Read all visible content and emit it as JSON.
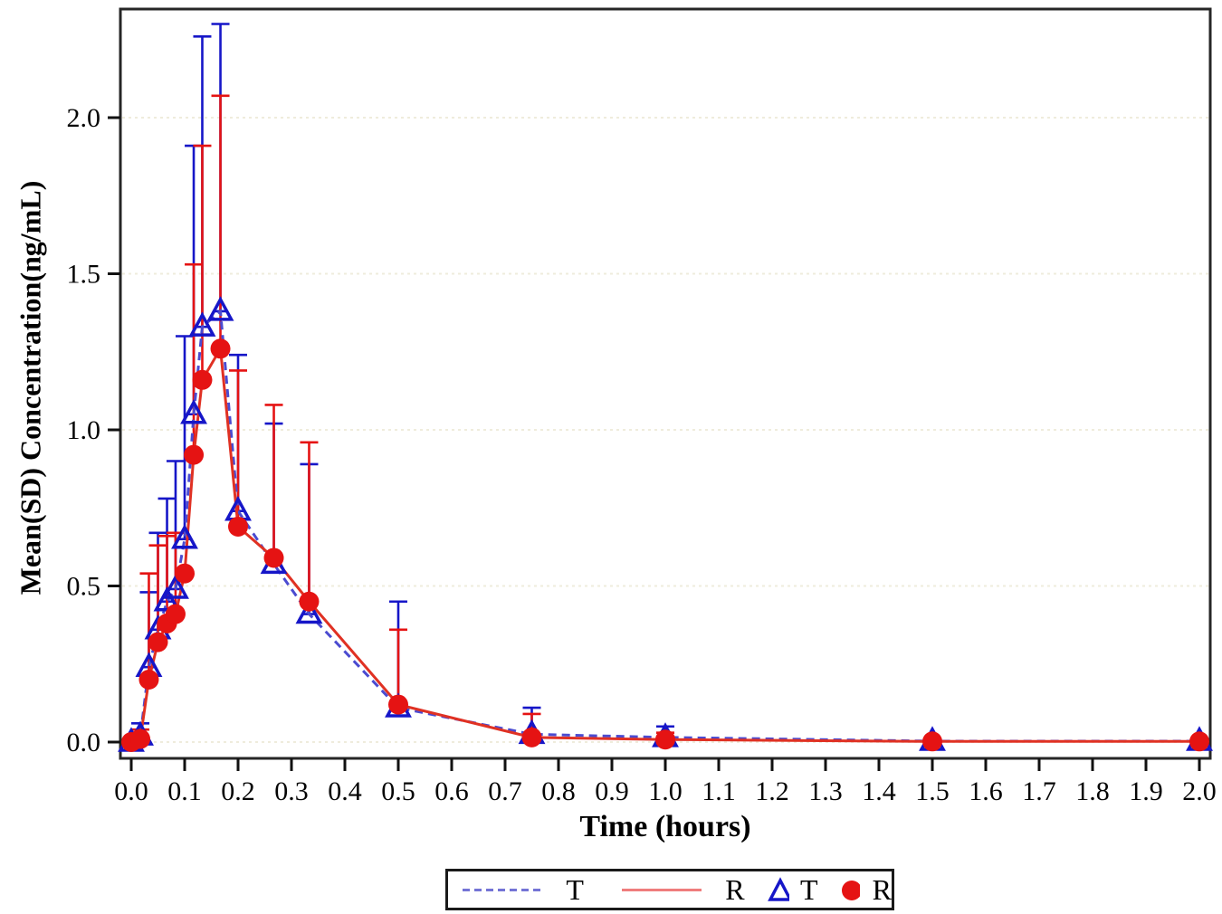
{
  "figure": {
    "y_axis_title": "Mean(SD) Concentration(ng/mL)",
    "x_axis_title": "Time (hours)"
  },
  "legend": {
    "items": [
      {
        "swatch": "dashed-line",
        "color": "#7474d6",
        "label": "T"
      },
      {
        "swatch": "solid-line",
        "color": "#ef7d7d",
        "label": "R"
      },
      {
        "swatch": "open-triangle",
        "color": "#1616c8",
        "label": "T"
      },
      {
        "swatch": "filled-circle",
        "color": "#e51313",
        "label": "R"
      }
    ]
  },
  "chart_data": {
    "type": "line",
    "title": "",
    "xlabel": "Time (hours)",
    "ylabel": "Mean(SD) Concentration(ng/mL)",
    "grid": "horizontal-dotted",
    "legend_position": "bottom",
    "xlim": [
      -0.02,
      2.02
    ],
    "ylim": [
      -0.05,
      2.35
    ],
    "x_ticks": [
      0.0,
      0.1,
      0.2,
      0.3,
      0.4,
      0.5,
      0.6,
      0.7,
      0.8,
      0.9,
      1.0,
      1.1,
      1.2,
      1.3,
      1.4,
      1.5,
      1.6,
      1.7,
      1.8,
      1.9,
      2.0
    ],
    "y_ticks": [
      0.0,
      0.5,
      1.0,
      1.5,
      2.0
    ],
    "x": [
      0,
      0.017,
      0.033,
      0.05,
      0.067,
      0.083,
      0.1,
      0.117,
      0.133,
      0.167,
      0.2,
      0.267,
      0.333,
      0.5,
      0.75,
      1.0,
      1.5,
      2.0
    ],
    "series": [
      {
        "name": "T",
        "marker": "open-triangle",
        "line_style": "dashed",
        "marker_color": "#1616c8",
        "line_color": "#4b4bd0",
        "values": [
          0.0,
          0.02,
          0.24,
          0.36,
          0.45,
          0.49,
          0.65,
          1.05,
          1.33,
          1.38,
          0.74,
          0.57,
          0.41,
          0.11,
          0.025,
          0.015,
          0.003,
          0.003
        ],
        "upper_sd": [
          0.0,
          0.06,
          0.48,
          0.67,
          0.78,
          0.9,
          1.3,
          1.91,
          2.26,
          2.3,
          1.24,
          1.02,
          0.89,
          0.45,
          0.11,
          0.05,
          0.003,
          0.003
        ]
      },
      {
        "name": "R",
        "marker": "filled-circle",
        "line_style": "solid",
        "marker_color": "#e51313",
        "line_color": "#e03123",
        "values": [
          0.0,
          0.01,
          0.2,
          0.32,
          0.38,
          0.41,
          0.54,
          0.92,
          1.16,
          1.26,
          0.69,
          0.59,
          0.45,
          0.12,
          0.015,
          0.008,
          0.002,
          0.002
        ],
        "upper_sd": [
          0.0,
          0.04,
          0.54,
          0.63,
          0.66,
          0.67,
          0.54,
          1.53,
          1.91,
          2.07,
          1.19,
          1.08,
          0.96,
          0.36,
          0.09,
          0.03,
          0.002,
          0.002
        ]
      }
    ]
  }
}
